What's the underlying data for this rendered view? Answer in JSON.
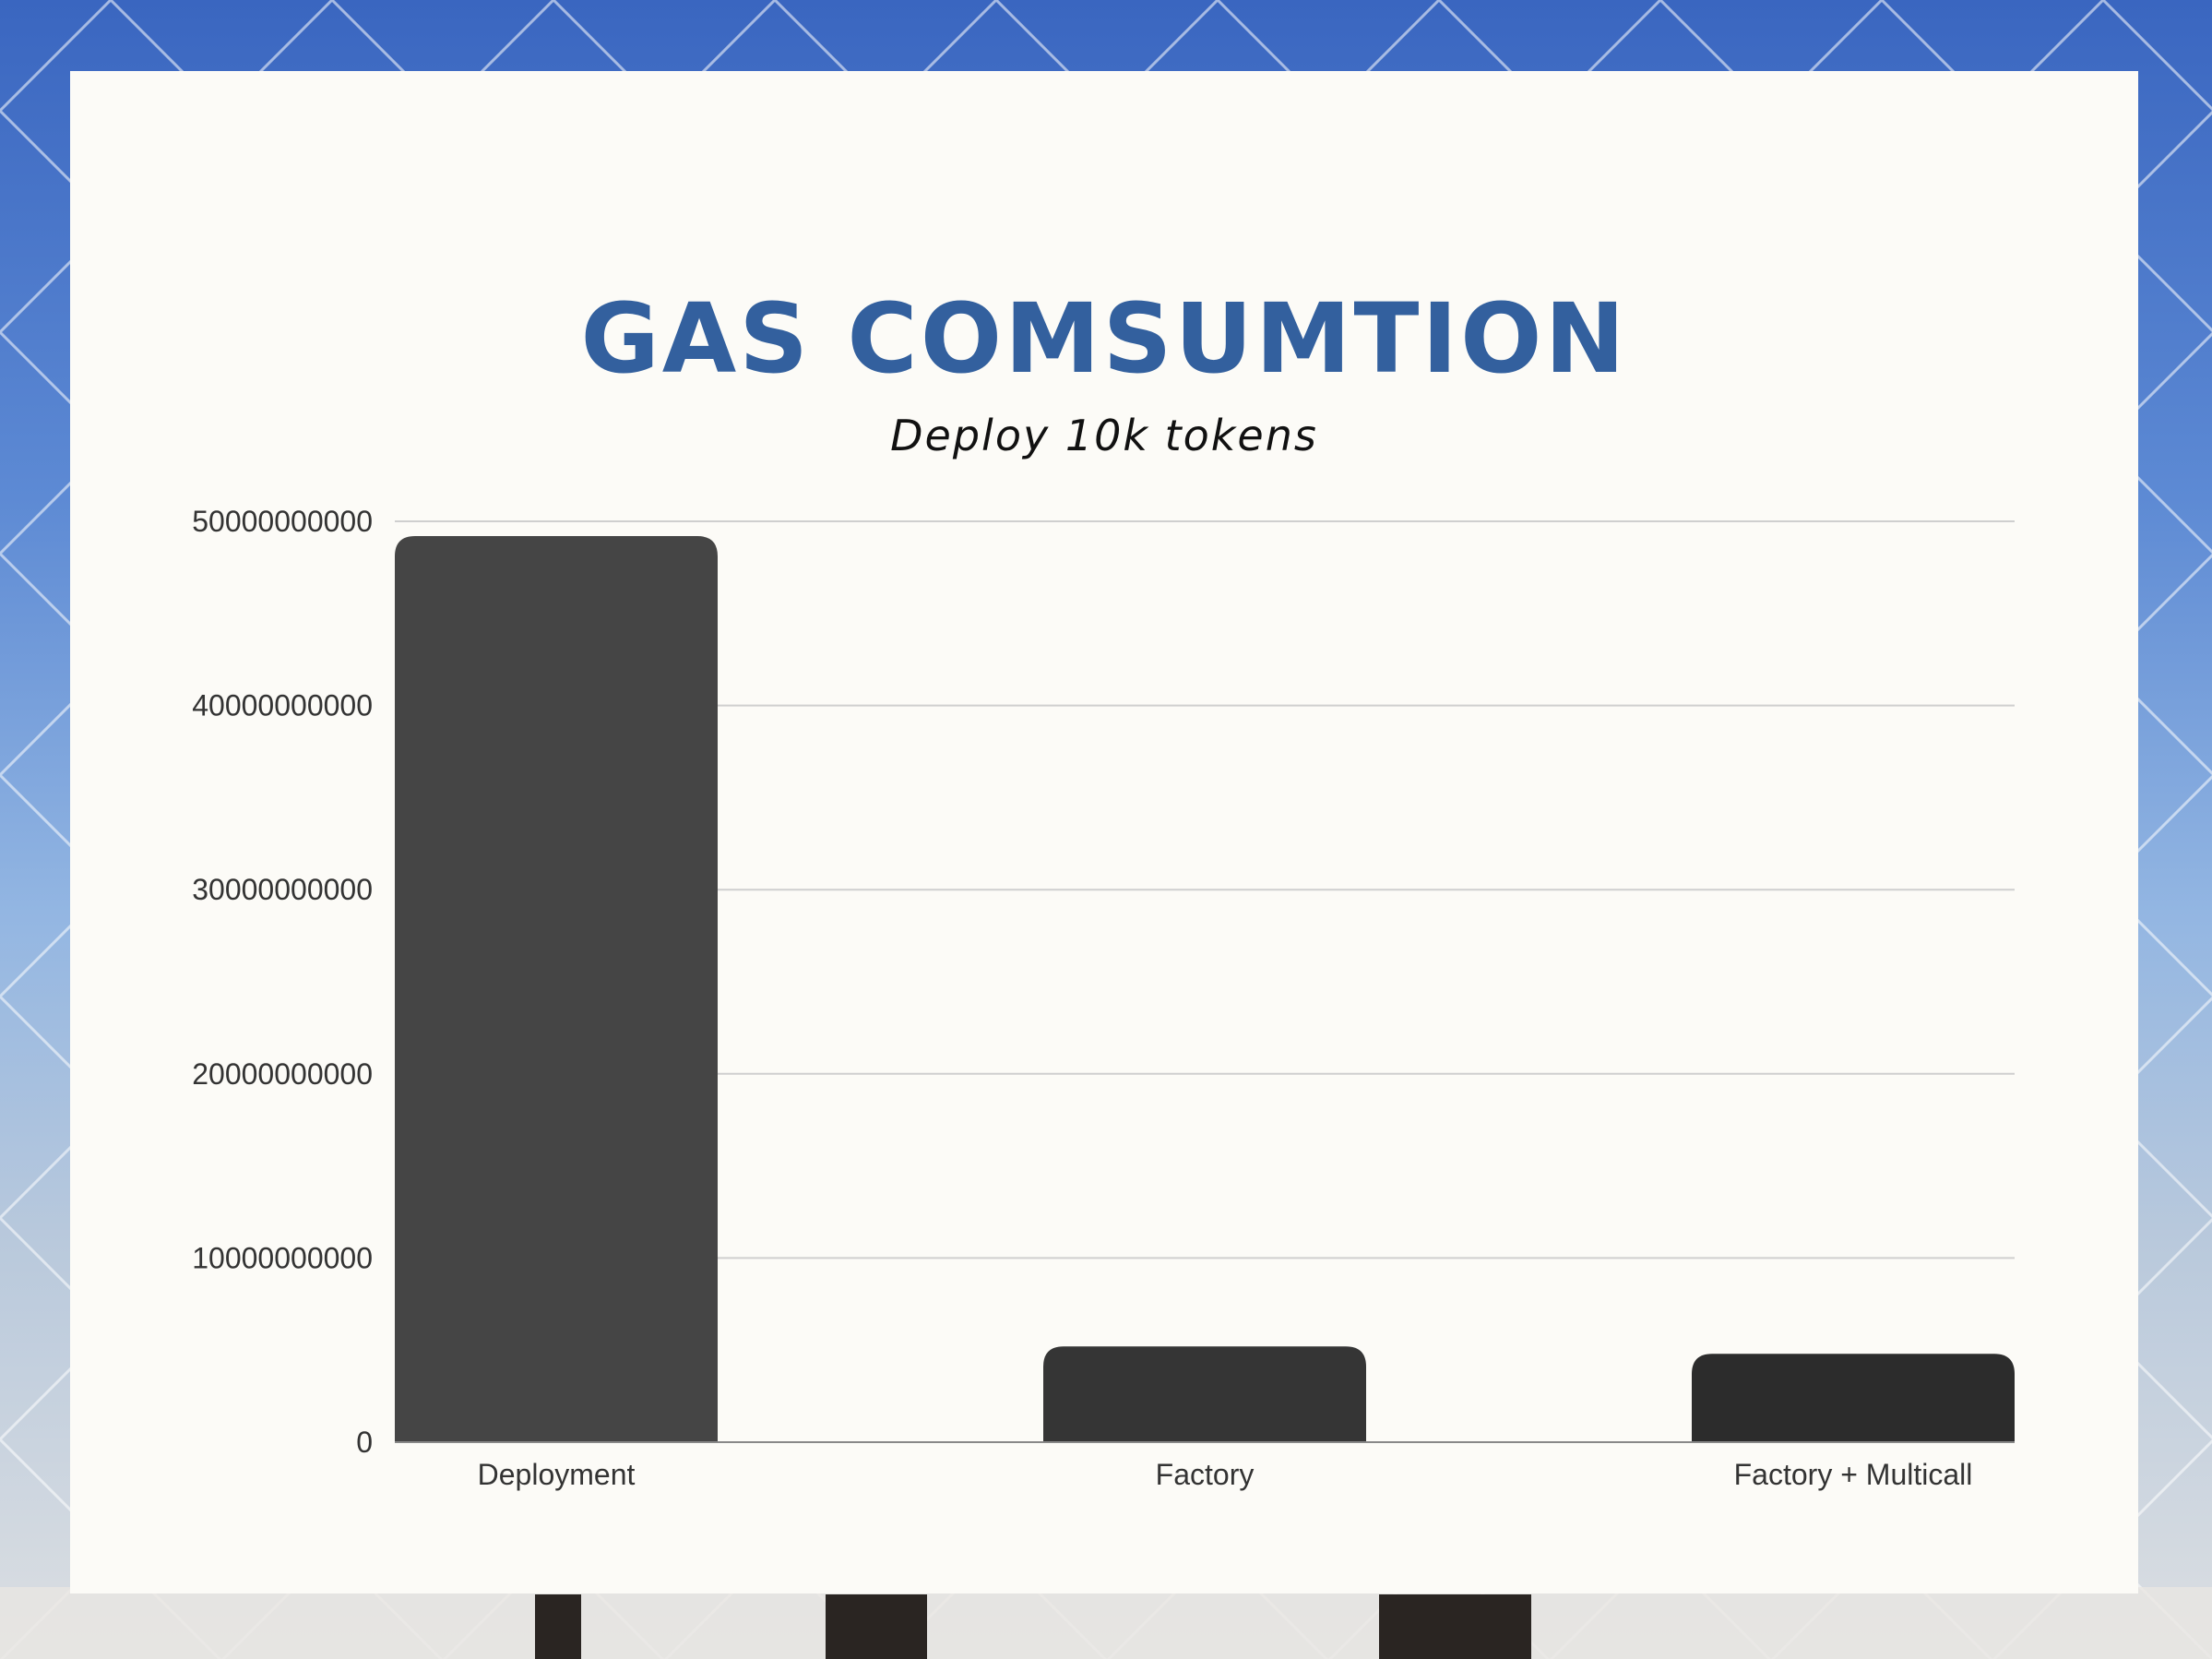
{
  "title": "GAS COMSUMTION",
  "subtitle": "Deploy 10k tokens",
  "colors": {
    "title": "#33609e",
    "card_background": "#fcfbf7",
    "gridline": "#cfcfcf",
    "bar_colors": [
      "#454545",
      "#353535",
      "#2c2c2c"
    ]
  },
  "chart_data": {
    "type": "bar",
    "title": "GAS COMSUMTION",
    "subtitle": "Deploy 10k tokens",
    "categories": [
      "Deployment",
      "Factory",
      "Factory + Multicall"
    ],
    "values": [
      49200000000,
      5200000000,
      4800000000
    ],
    "ylim": [
      0,
      50000000000
    ],
    "yticks": [
      "0",
      "10000000000",
      "20000000000",
      "30000000000",
      "40000000000",
      "50000000000"
    ],
    "xlabel": "",
    "ylabel": "",
    "grid": true,
    "legend": "none"
  }
}
